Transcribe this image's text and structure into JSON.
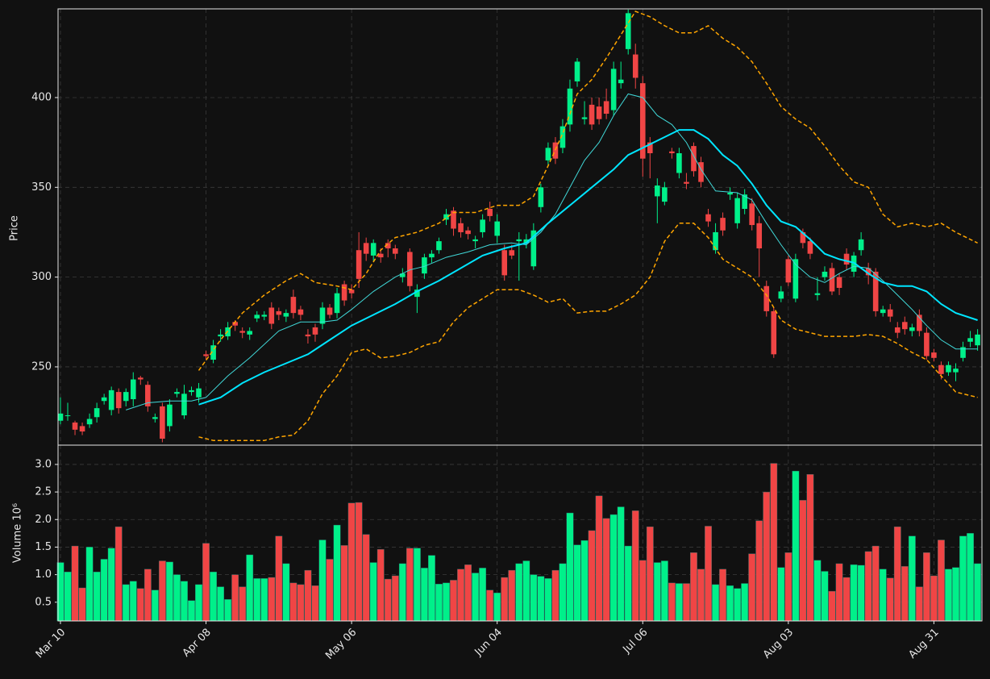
{
  "chart_data": [
    {
      "type": "candlestick",
      "ylabel": "Price",
      "up_color": "#00f08a",
      "down_color": "#f04545",
      "grid": true,
      "xlim": [
        -0.33,
        126.6
      ],
      "xticks": [
        0,
        20,
        40,
        60,
        80,
        100,
        120
      ],
      "ylim": [
        206.4,
        449.4
      ],
      "yticks": [
        250,
        300,
        350,
        400
      ],
      "open": [
        220,
        223,
        219,
        217,
        218,
        222,
        231,
        226,
        236,
        231,
        232,
        244,
        240,
        221,
        228,
        217,
        235,
        223,
        236,
        233,
        257,
        254,
        267,
        267,
        275,
        270,
        268,
        277,
        278,
        283,
        281,
        278,
        289,
        282,
        268,
        272,
        274,
        283,
        280,
        296,
        293,
        315,
        319,
        312,
        313,
        319,
        316,
        300,
        314,
        289,
        302,
        311,
        315,
        332,
        337,
        330,
        326,
        320,
        325,
        338,
        323,
        315,
        315,
        320,
        319,
        306,
        339,
        365,
        375,
        372,
        385,
        409,
        388,
        396,
        395,
        398,
        393,
        408,
        427,
        424,
        408,
        375,
        345,
        342,
        370,
        358,
        353,
        373,
        364,
        335,
        315,
        333,
        346,
        330,
        338,
        341,
        330,
        295,
        281,
        288,
        310,
        288,
        325,
        320,
        290,
        300,
        305,
        300,
        313,
        303,
        315,
        305,
        303,
        280,
        282,
        272,
        275,
        270,
        279,
        269,
        258,
        251,
        247,
        247,
        255,
        264,
        262
      ],
      "high": [
        233,
        230,
        220,
        219,
        224,
        230,
        235,
        239,
        238,
        238,
        247,
        245,
        242,
        224,
        230,
        232,
        238,
        240,
        239,
        241,
        259,
        265,
        271,
        275,
        276,
        272,
        272,
        281,
        281,
        286,
        283,
        282,
        293,
        284,
        271,
        274,
        286,
        285,
        294,
        298,
        296,
        325,
        322,
        321,
        316,
        321,
        318,
        305,
        316,
        296,
        313,
        315,
        322,
        338,
        339,
        333,
        328,
        323,
        335,
        342,
        335,
        318,
        318,
        325,
        324,
        330,
        352,
        375,
        378,
        388,
        410,
        422,
        398,
        400,
        400,
        405,
        420,
        420,
        449,
        430,
        412,
        378,
        355,
        353,
        372,
        372,
        358,
        375,
        367,
        338,
        330,
        336,
        350,
        347,
        349,
        344,
        334,
        298,
        283,
        295,
        312,
        313,
        327,
        322,
        300,
        306,
        308,
        302,
        316,
        314,
        325,
        308,
        305,
        284,
        285,
        275,
        278,
        274,
        282,
        272,
        260,
        253,
        253,
        252,
        264,
        270,
        271
      ],
      "low": [
        218,
        220,
        212,
        212,
        216,
        219,
        229,
        223,
        224,
        228,
        228,
        240,
        225,
        219,
        208,
        214,
        233,
        221,
        234,
        230,
        254,
        252,
        264,
        265,
        270,
        266,
        265,
        275,
        276,
        271,
        276,
        275,
        277,
        276,
        263,
        264,
        271,
        277,
        277,
        284,
        288,
        294,
        309,
        309,
        308,
        311,
        310,
        297,
        292,
        280,
        299,
        308,
        313,
        329,
        323,
        322,
        321,
        316,
        322,
        331,
        319,
        298,
        310,
        298,
        316,
        304,
        336,
        362,
        363,
        369,
        381,
        406,
        385,
        382,
        385,
        388,
        390,
        405,
        424,
        405,
        356,
        355,
        330,
        340,
        366,
        355,
        349,
        356,
        350,
        328,
        313,
        323,
        343,
        327,
        335,
        326,
        300,
        278,
        255,
        286,
        295,
        286,
        316,
        310,
        287,
        298,
        290,
        290,
        304,
        300,
        312,
        296,
        278,
        278,
        275,
        266,
        268,
        267,
        267,
        254,
        253,
        243,
        245,
        242,
        253,
        261,
        259
      ],
      "close": [
        224,
        223,
        215,
        214,
        221,
        227,
        233,
        237,
        227,
        236,
        243,
        243,
        228,
        222,
        210,
        229,
        236,
        235,
        237,
        238,
        256,
        262,
        268,
        272,
        273,
        269,
        270,
        279,
        279,
        274,
        279,
        280,
        280,
        279,
        267,
        268,
        283,
        279,
        291,
        287,
        291,
        299,
        313,
        319,
        311,
        316,
        313,
        302,
        295,
        293,
        311,
        313,
        320,
        335,
        327,
        325,
        324,
        321,
        332,
        334,
        331,
        301,
        312,
        321,
        321,
        326,
        350,
        372,
        366,
        384,
        405,
        420,
        389,
        385,
        388,
        391,
        416,
        410,
        447,
        411,
        366,
        369,
        351,
        350,
        369,
        369,
        352,
        359,
        353,
        331,
        325,
        326,
        347,
        344,
        346,
        329,
        316,
        281,
        257,
        292,
        297,
        310,
        319,
        313,
        291,
        303,
        292,
        294,
        307,
        312,
        321,
        301,
        281,
        282,
        278,
        269,
        271,
        272,
        270,
        256,
        255,
        246,
        251,
        249,
        261,
        266,
        268
      ],
      "lines": [
        {
          "color": "#ffa500",
          "width": 1.5,
          "dash": true,
          "x": [
            19,
            22,
            25,
            28,
            31,
            33,
            35,
            38,
            40,
            42,
            44,
            46,
            49,
            52,
            54,
            57,
            60,
            63,
            65,
            67,
            69,
            71,
            73,
            75,
            77,
            79,
            81,
            83,
            85,
            87,
            89,
            91,
            93,
            95,
            97,
            99,
            101,
            103,
            105,
            107,
            109,
            111,
            113,
            115,
            117,
            119,
            121,
            123,
            126
          ],
          "values": [
            248,
            265,
            280,
            290,
            298,
            302,
            297,
            295,
            293,
            302,
            315,
            322,
            325,
            330,
            336,
            336,
            340,
            340,
            345,
            362,
            380,
            402,
            410,
            422,
            435,
            448,
            445,
            440,
            436,
            436,
            440,
            433,
            428,
            420,
            408,
            395,
            388,
            383,
            373,
            362,
            353,
            350,
            335,
            328,
            330,
            328,
            330,
            325,
            319
          ]
        },
        {
          "color": "#ffa500",
          "width": 1.5,
          "dash": true,
          "x": [
            19,
            21,
            23,
            26,
            28,
            30,
            32,
            34,
            36,
            38,
            40,
            42,
            44,
            46,
            48,
            50,
            52,
            54,
            56,
            58,
            60,
            63,
            65,
            67,
            69,
            71,
            73,
            75,
            77,
            79,
            81,
            83,
            85,
            87,
            89,
            91,
            93,
            95,
            97,
            99,
            101,
            103,
            105,
            107,
            109,
            111,
            113,
            115,
            117,
            119,
            121,
            123,
            126
          ],
          "values": [
            211,
            209,
            209,
            209,
            209,
            211,
            212,
            220,
            235,
            245,
            258,
            260,
            255,
            256,
            258,
            262,
            264,
            275,
            283,
            288,
            293,
            293,
            290,
            286,
            288,
            280,
            281,
            281,
            285,
            290,
            300,
            320,
            330,
            330,
            322,
            310,
            305,
            300,
            290,
            276,
            271,
            269,
            267,
            267,
            267,
            268,
            267,
            263,
            258,
            254,
            245,
            236,
            233
          ]
        },
        {
          "color": "#40d8d8",
          "width": 1,
          "x": [
            9,
            12,
            15,
            18,
            20,
            23,
            26,
            30,
            33,
            36,
            38,
            40,
            43,
            46,
            48,
            50,
            53,
            56,
            59,
            62,
            64,
            66,
            68,
            70,
            72,
            74,
            76,
            78,
            80,
            82,
            84,
            86,
            88,
            90,
            93,
            95,
            97,
            99,
            101,
            103,
            105,
            107,
            109,
            111,
            113,
            115,
            117,
            119,
            121,
            123,
            126
          ],
          "values": [
            226,
            230,
            231,
            231,
            233,
            245,
            255,
            270,
            275,
            275,
            276,
            282,
            292,
            300,
            304,
            306,
            311,
            314,
            318,
            319,
            318,
            325,
            335,
            350,
            365,
            375,
            390,
            402,
            400,
            390,
            385,
            375,
            360,
            348,
            347,
            343,
            330,
            318,
            307,
            300,
            297,
            302,
            306,
            305,
            298,
            290,
            282,
            273,
            265,
            260,
            260
          ]
        },
        {
          "color": "#00e5ff",
          "width": 2,
          "x": [
            19,
            22,
            25,
            28,
            31,
            34,
            37,
            40,
            43,
            46,
            49,
            52,
            55,
            58,
            61,
            64,
            67,
            70,
            73,
            76,
            78,
            80,
            83,
            85,
            87,
            89,
            91,
            93,
            95,
            97,
            99,
            101,
            103,
            105,
            107,
            109,
            111,
            113,
            115,
            117,
            119,
            121,
            123,
            126
          ],
          "values": [
            229,
            233,
            241,
            247,
            252,
            257,
            265,
            273,
            279,
            285,
            292,
            298,
            305,
            312,
            316,
            319,
            330,
            340,
            350,
            360,
            368,
            372,
            378,
            382,
            382,
            377,
            368,
            362,
            352,
            340,
            331,
            328,
            321,
            313,
            310,
            308,
            302,
            297,
            295,
            295,
            292,
            285,
            280,
            276
          ]
        }
      ]
    },
    {
      "type": "bar",
      "ylabel": "Volume  10⁶",
      "grid": true,
      "xlim": [
        -0.33,
        126.6
      ],
      "xticks": [
        {
          "value": 0,
          "label": "Mar 10"
        },
        {
          "value": 20,
          "label": "Apr 08"
        },
        {
          "value": 40,
          "label": "May 06"
        },
        {
          "value": 60,
          "label": "Jun 04"
        },
        {
          "value": 80,
          "label": "Jul 06"
        },
        {
          "value": 100,
          "label": "Aug 03"
        },
        {
          "value": 120,
          "label": "Aug 31"
        }
      ],
      "ylim": [
        0.16,
        3.35
      ],
      "yticks": [
        0.5,
        {
          "value": 1,
          "label": "1.0"
        },
        1.5,
        {
          "value": 2,
          "label": "2.0"
        },
        2.5,
        {
          "value": 3,
          "label": "3.0"
        }
      ],
      "values": [
        1.22,
        1.05,
        1.52,
        0.76,
        1.5,
        1.05,
        1.28,
        1.48,
        1.87,
        0.82,
        0.88,
        0.75,
        1.1,
        0.72,
        1.25,
        1.23,
        1.0,
        0.88,
        0.53,
        0.82,
        1.57,
        1.05,
        0.78,
        0.55,
        1.0,
        0.78,
        1.36,
        0.93,
        0.93,
        0.95,
        1.7,
        1.2,
        0.85,
        0.82,
        1.08,
        0.8,
        1.63,
        1.28,
        1.9,
        1.53,
        2.3,
        2.31,
        1.73,
        1.22,
        1.46,
        0.92,
        0.98,
        1.2,
        1.48,
        1.48,
        1.12,
        1.35,
        0.83,
        0.85,
        0.9,
        1.1,
        1.18,
        1.03,
        1.12,
        0.72,
        0.67,
        0.95,
        1.08,
        1.2,
        1.25,
        1.0,
        0.97,
        0.93,
        1.08,
        1.2,
        2.12,
        1.54,
        1.62,
        1.8,
        2.43,
        2.02,
        2.09,
        2.23,
        1.52,
        2.16,
        1.26,
        1.87,
        1.22,
        1.25,
        0.85,
        0.84,
        0.84,
        1.4,
        1.1,
        1.88,
        0.82,
        1.1,
        0.8,
        0.75,
        0.84,
        1.38,
        1.98,
        2.5,
        3.02,
        1.13,
        1.4,
        2.88,
        2.35,
        2.82,
        1.26,
        1.06,
        0.7,
        1.2,
        0.95,
        1.18,
        1.17,
        1.42,
        1.52,
        1.1,
        0.94,
        1.87,
        1.15,
        1.7,
        0.78,
        1.4,
        0.98,
        1.63,
        1.1,
        1.13,
        1.7,
        1.75,
        1.2
      ]
    }
  ]
}
